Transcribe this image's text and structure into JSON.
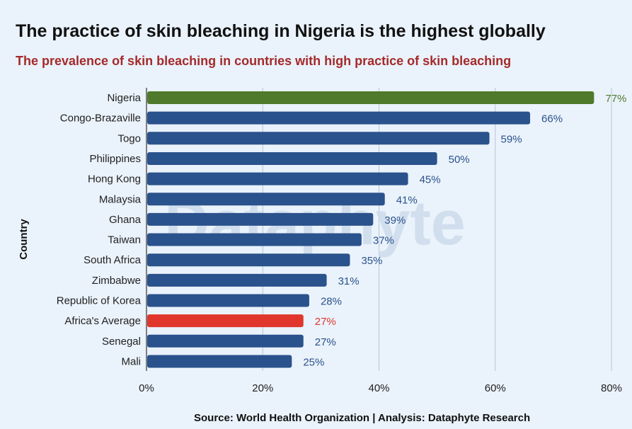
{
  "title": "The practice of skin bleaching in Nigeria is the highest globally",
  "subtitle": "The prevalence of skin bleaching in countries with high practice of skin bleaching",
  "source": "Source: World Health Organization | Analysis: Dataphyte Research",
  "watermark": "Dataphyte",
  "colors": {
    "default_bar": "#2a528c",
    "highlight_bar": "#4f7a2c",
    "average_bar": "#e0362b",
    "default_label": "#2a528c",
    "highlight_label": "#4f7a2c",
    "average_label": "#e0362b"
  },
  "chart_data": {
    "type": "bar",
    "orientation": "horizontal",
    "ylabel": "Country",
    "xlabel": "",
    "xlim": [
      0,
      80
    ],
    "xticks": [
      "0%",
      "20%",
      "40%",
      "60%",
      "80%"
    ],
    "xtick_values": [
      0,
      20,
      40,
      60,
      80
    ],
    "grid": true,
    "categories": [
      "Nigeria",
      "Congo-Brazaville",
      "Togo",
      "Philippines",
      "Hong Kong",
      "Malaysia",
      "Ghana",
      "Taiwan",
      "South Africa",
      "Zimbabwe",
      "Republic of Korea",
      "Africa's Average",
      "Senegal",
      "Mali"
    ],
    "values": [
      77,
      66,
      59,
      50,
      45,
      41,
      39,
      37,
      35,
      31,
      28,
      27,
      27,
      25
    ],
    "value_labels": [
      "77%",
      "66%",
      "59%",
      "50%",
      "45%",
      "41%",
      "39%",
      "37%",
      "35%",
      "31%",
      "28%",
      "27%",
      "27%",
      "25%"
    ],
    "highlight": "Nigeria",
    "average": "Africa's Average"
  }
}
